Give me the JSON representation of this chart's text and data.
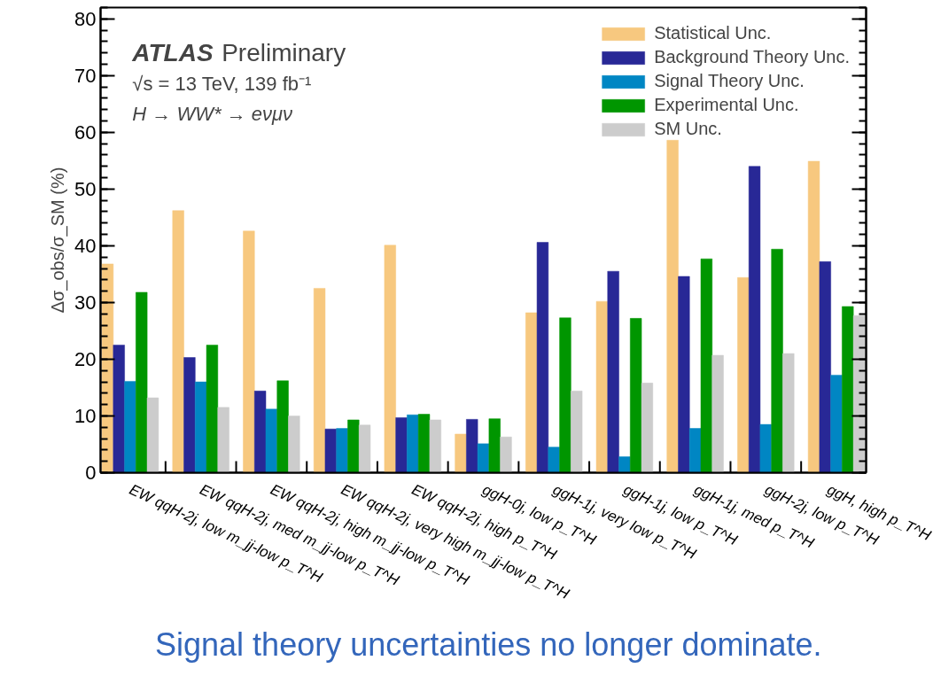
{
  "chart_data": {
    "type": "bar",
    "ylabel": "Δσ_obs/σ_SM (%)",
    "categories": [
      "EW qqH-2j, low m_jj-low p_T^H",
      "EW qqH-2j, med m_jj-low p_T^H",
      "EW qqH-2j, high m_jj-low p_T^H",
      "EW qqH-2j, very high m_jj-low p_T^H",
      "EW qqH-2j, high p_T^H",
      "ggH-0j, low p_T^H",
      "ggH-1j, very low p_T^H",
      "ggH-1j, low p_T^H",
      "ggH-1j, med p_T^H",
      "ggH-2j, low p_T^H",
      "ggH, high p_T^H"
    ],
    "series": [
      {
        "name": "Statistical Unc.",
        "color": "#f7c87f",
        "values": [
          36.8,
          46.2,
          42.6,
          32.5,
          40.1,
          6.8,
          28.2,
          30.2,
          58.6,
          34.4,
          54.9
        ]
      },
      {
        "name": "Background Theory Unc.",
        "color": "#282896",
        "values": [
          22.5,
          20.3,
          14.4,
          7.7,
          9.7,
          9.4,
          40.6,
          35.5,
          34.6,
          54.0,
          37.2
        ]
      },
      {
        "name": "Signal Theory Unc.",
        "color": "#0086c3",
        "values": [
          16.1,
          16.0,
          11.2,
          7.8,
          10.2,
          5.1,
          4.5,
          2.8,
          7.8,
          8.5,
          17.2
        ]
      },
      {
        "name": "Experimental Unc.",
        "color": "#009600",
        "values": [
          31.8,
          22.5,
          16.2,
          9.3,
          10.3,
          9.5,
          27.3,
          27.2,
          37.7,
          39.4,
          29.3
        ]
      },
      {
        "name": "SM Unc.",
        "color": "#cccccc",
        "values": [
          13.2,
          11.5,
          10.0,
          8.4,
          9.3,
          6.3,
          14.4,
          15.8,
          20.7,
          21.0,
          27.7
        ]
      }
    ],
    "ylim": [
      0,
      82
    ],
    "yticks": [
      0,
      10,
      20,
      30,
      40,
      50,
      60,
      70,
      80
    ],
    "grid": false,
    "legend": "top right",
    "annotations": [
      "ATLAS Preliminary",
      "√s = 13 TeV, 139 fb⁻¹",
      "H → WW* → eνμν",
      "Signal theory uncertainties no longer dominate."
    ]
  }
}
